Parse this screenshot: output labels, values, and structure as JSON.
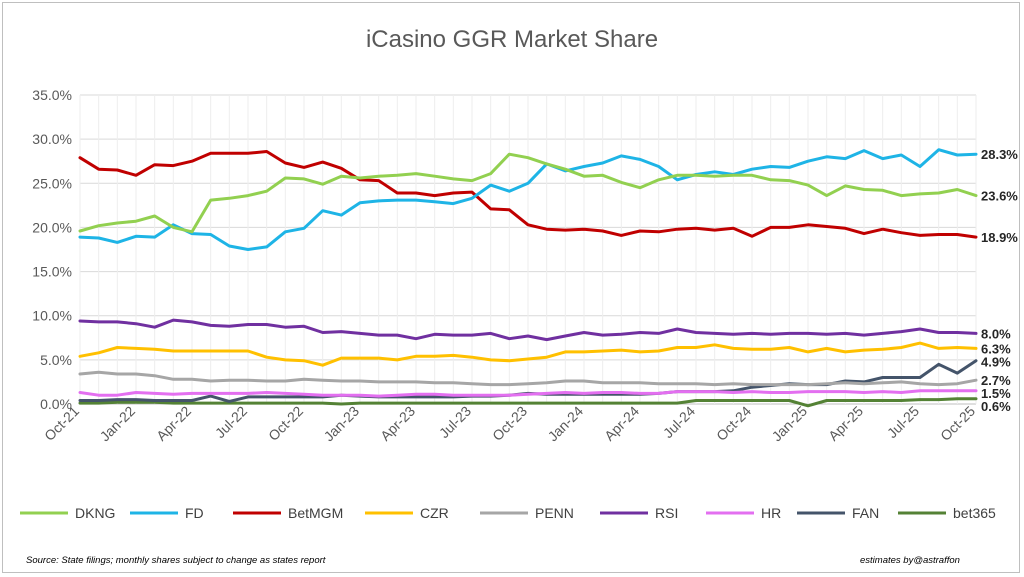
{
  "chart_data": {
    "type": "line",
    "title": "iCasino GGR Market Share",
    "ylim": [
      0,
      35
    ],
    "y_ticks": [
      "0.0%",
      "5.0%",
      "10.0%",
      "15.0%",
      "20.0%",
      "25.0%",
      "30.0%",
      "35.0%"
    ],
    "x": [
      "Oct-21",
      "Nov-21",
      "Dec-21",
      "Jan-22",
      "Feb-22",
      "Mar-22",
      "Apr-22",
      "May-22",
      "Jun-22",
      "Jul-22",
      "Aug-22",
      "Sep-22",
      "Oct-22",
      "Nov-22",
      "Dec-22",
      "Jan-23",
      "Feb-23",
      "Mar-23",
      "Apr-23",
      "May-23",
      "Jun-23",
      "Jul-23",
      "Aug-23",
      "Sep-23",
      "Oct-23",
      "Nov-23",
      "Dec-23",
      "Jan-24",
      "Feb-24",
      "Mar-24",
      "Apr-24",
      "May-24",
      "Jun-24",
      "Jul-24",
      "Aug-24",
      "Sep-24",
      "Oct-24",
      "Nov-24",
      "Dec-24",
      "Jan-25",
      "Feb-25",
      "Mar-25",
      "Apr-25",
      "May-25",
      "Jun-25",
      "Jul-25",
      "Aug-25",
      "Sep-25",
      "Oct-25"
    ],
    "x_tick_labels": [
      "Oct-21",
      "Jan-22",
      "Apr-22",
      "Jul-22",
      "Oct-22",
      "Jan-23",
      "Apr-23",
      "Jul-23",
      "Oct-23",
      "Jan-24",
      "Apr-24",
      "Jul-24",
      "Oct-24",
      "Jan-25",
      "Apr-25",
      "Jul-25",
      "Oct-25"
    ],
    "series": [
      {
        "name": "DKNG",
        "color": "#92d050",
        "end_label": "23.6%",
        "values": [
          19.6,
          20.2,
          20.5,
          20.7,
          21.3,
          20.0,
          19.5,
          23.1,
          23.3,
          23.6,
          24.1,
          25.6,
          25.5,
          24.9,
          25.8,
          25.6,
          25.8,
          25.9,
          26.1,
          25.8,
          25.5,
          25.3,
          26.1,
          28.3,
          27.9,
          27.2,
          26.6,
          25.8,
          25.9,
          25.1,
          24.5,
          25.4,
          25.9,
          25.9,
          25.8,
          25.9,
          25.9,
          25.4,
          25.3,
          24.8,
          23.6,
          24.7,
          24.3,
          24.2,
          23.6,
          23.8,
          23.9,
          24.3,
          23.6
        ]
      },
      {
        "name": "FD",
        "color": "#1eb4e6",
        "end_label": "28.3%",
        "values": [
          18.9,
          18.8,
          18.3,
          19.0,
          18.9,
          20.3,
          19.3,
          19.2,
          17.9,
          17.5,
          17.8,
          19.5,
          19.9,
          21.9,
          21.4,
          22.8,
          23.0,
          23.1,
          23.1,
          22.9,
          22.7,
          23.3,
          24.8,
          24.1,
          25.0,
          27.2,
          26.4,
          26.9,
          27.3,
          28.1,
          27.7,
          26.9,
          25.4,
          26.0,
          26.3,
          26.0,
          26.6,
          26.9,
          26.8,
          27.5,
          28.0,
          27.8,
          28.7,
          27.8,
          28.2,
          26.9,
          28.8,
          28.2,
          28.3
        ]
      },
      {
        "name": "BetMGM",
        "color": "#c00000",
        "end_label": "18.9%",
        "values": [
          27.9,
          26.6,
          26.5,
          25.9,
          27.1,
          27.0,
          27.5,
          28.4,
          28.4,
          28.4,
          28.6,
          27.3,
          26.8,
          27.4,
          26.7,
          25.4,
          25.3,
          23.9,
          23.9,
          23.6,
          23.9,
          24.0,
          22.1,
          22.0,
          20.3,
          19.8,
          19.7,
          19.8,
          19.6,
          19.1,
          19.6,
          19.5,
          19.8,
          19.9,
          19.7,
          19.9,
          19.0,
          20.0,
          20.0,
          20.3,
          20.1,
          19.9,
          19.3,
          19.8,
          19.4,
          19.1,
          19.2,
          19.2,
          18.9
        ]
      },
      {
        "name": "CZR",
        "color": "#ffc000",
        "end_label": "6.3%",
        "values": [
          5.4,
          5.8,
          6.4,
          6.3,
          6.2,
          6.0,
          6.0,
          6.0,
          6.0,
          6.0,
          5.3,
          5.0,
          4.9,
          4.4,
          5.2,
          5.2,
          5.2,
          5.0,
          5.4,
          5.4,
          5.5,
          5.3,
          5.0,
          4.9,
          5.1,
          5.3,
          5.9,
          5.9,
          6.0,
          6.1,
          5.9,
          6.0,
          6.4,
          6.4,
          6.7,
          6.3,
          6.2,
          6.2,
          6.4,
          5.9,
          6.3,
          5.9,
          6.1,
          6.2,
          6.4,
          6.9,
          6.3,
          6.4,
          6.3
        ]
      },
      {
        "name": "PENN",
        "color": "#a6a6a6",
        "end_label": "2.7%",
        "values": [
          3.4,
          3.6,
          3.4,
          3.4,
          3.2,
          2.8,
          2.8,
          2.6,
          2.7,
          2.7,
          2.6,
          2.6,
          2.8,
          2.7,
          2.6,
          2.6,
          2.5,
          2.5,
          2.5,
          2.4,
          2.4,
          2.3,
          2.2,
          2.2,
          2.3,
          2.4,
          2.6,
          2.6,
          2.4,
          2.4,
          2.4,
          2.3,
          2.3,
          2.3,
          2.2,
          2.3,
          2.2,
          2.2,
          2.2,
          2.2,
          2.3,
          2.4,
          2.3,
          2.4,
          2.5,
          2.3,
          2.2,
          2.3,
          2.7
        ]
      },
      {
        "name": "RSI",
        "color": "#7030a0",
        "end_label": "8.0%",
        "values": [
          9.4,
          9.3,
          9.3,
          9.1,
          8.7,
          9.5,
          9.3,
          8.9,
          8.8,
          9.0,
          9.0,
          8.7,
          8.8,
          8.1,
          8.2,
          8.0,
          7.8,
          7.8,
          7.4,
          7.9,
          7.8,
          7.8,
          8.0,
          7.4,
          7.7,
          7.3,
          7.7,
          8.1,
          7.8,
          7.9,
          8.1,
          8.0,
          8.5,
          8.1,
          8.0,
          7.9,
          8.0,
          7.9,
          8.0,
          8.0,
          7.9,
          8.0,
          7.8,
          8.0,
          8.2,
          8.5,
          8.1,
          8.1,
          8.0
        ]
      },
      {
        "name": "HR",
        "color": "#e36ff0",
        "end_label": "1.5%",
        "values": [
          1.3,
          1.0,
          1.0,
          1.3,
          1.2,
          1.1,
          1.2,
          1.2,
          1.2,
          1.2,
          1.3,
          1.2,
          1.1,
          1.0,
          1.0,
          1.0,
          0.9,
          1.0,
          1.1,
          1.1,
          1.0,
          1.0,
          1.0,
          1.0,
          1.1,
          1.2,
          1.3,
          1.2,
          1.3,
          1.3,
          1.2,
          1.2,
          1.4,
          1.4,
          1.4,
          1.3,
          1.4,
          1.3,
          1.3,
          1.4,
          1.4,
          1.4,
          1.3,
          1.4,
          1.3,
          1.5,
          1.5,
          1.5,
          1.5
        ]
      },
      {
        "name": "FAN",
        "color": "#44546a",
        "end_label": "4.9%",
        "values": [
          0.4,
          0.4,
          0.5,
          0.5,
          0.4,
          0.4,
          0.4,
          0.9,
          0.3,
          0.8,
          0.8,
          0.8,
          0.8,
          0.8,
          1.0,
          0.9,
          0.8,
          0.8,
          0.8,
          0.8,
          0.8,
          0.9,
          0.9,
          1.0,
          1.2,
          1.1,
          1.1,
          1.1,
          1.1,
          1.1,
          1.1,
          1.2,
          1.4,
          1.4,
          1.4,
          1.5,
          1.9,
          2.1,
          2.3,
          2.2,
          2.2,
          2.6,
          2.5,
          3.0,
          3.0,
          3.0,
          4.5,
          3.5,
          4.9
        ]
      },
      {
        "name": "bet365",
        "color": "#548235",
        "end_label": "0.6%",
        "values": [
          0.1,
          0.1,
          0.2,
          0.2,
          0.2,
          0.1,
          0.1,
          0.1,
          0.1,
          0.1,
          0.1,
          0.1,
          0.1,
          0.1,
          0.0,
          0.1,
          0.1,
          0.1,
          0.1,
          0.1,
          0.1,
          0.1,
          0.1,
          0.1,
          0.1,
          0.1,
          0.1,
          0.1,
          0.1,
          0.1,
          0.1,
          0.1,
          0.1,
          0.4,
          0.4,
          0.4,
          0.4,
          0.4,
          0.4,
          -0.2,
          0.4,
          0.4,
          0.4,
          0.4,
          0.4,
          0.5,
          0.5,
          0.6,
          0.6
        ]
      }
    ]
  },
  "footer": {
    "source": "Source: State filings; monthly shares subject to change as states report",
    "credit": "estimates by@astraffon"
  }
}
